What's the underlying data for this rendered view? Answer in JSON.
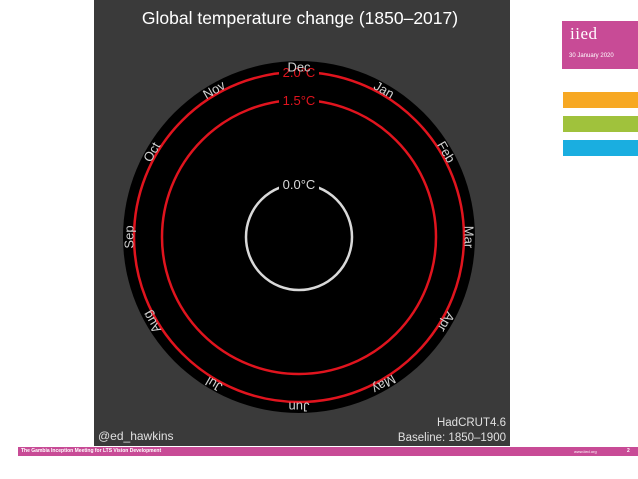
{
  "chart_data": {
    "type": "line",
    "title": "Global temperature change (1850–2017)",
    "months": [
      "Jan",
      "Feb",
      "Mar",
      "Apr",
      "May",
      "Jun",
      "Jul",
      "Aug",
      "Sep",
      "Oct",
      "Nov",
      "Dec"
    ],
    "rings": [
      {
        "label": "2.0°C",
        "value": 2.0,
        "color": "#e0141e"
      },
      {
        "label": "1.5°C",
        "value": 1.5,
        "color": "#e0141e"
      },
      {
        "label": "0.0°C",
        "value": 0.0,
        "color": "#d9d9d9"
      }
    ],
    "credit": "@ed_hawkins",
    "source_line1": "HadCRUT4.6",
    "source_line2": "Baseline: 1850–1900",
    "colors": {
      "panel": "#3a3a3a",
      "disc": "#000000",
      "text": "#ffffff"
    }
  },
  "logo": {
    "text": "iied",
    "date": "30 January 2020"
  },
  "footer": {
    "text": "The Gambia Inception Meeting for LTS Vision Development",
    "url": "www.iied.org",
    "page": "2"
  }
}
